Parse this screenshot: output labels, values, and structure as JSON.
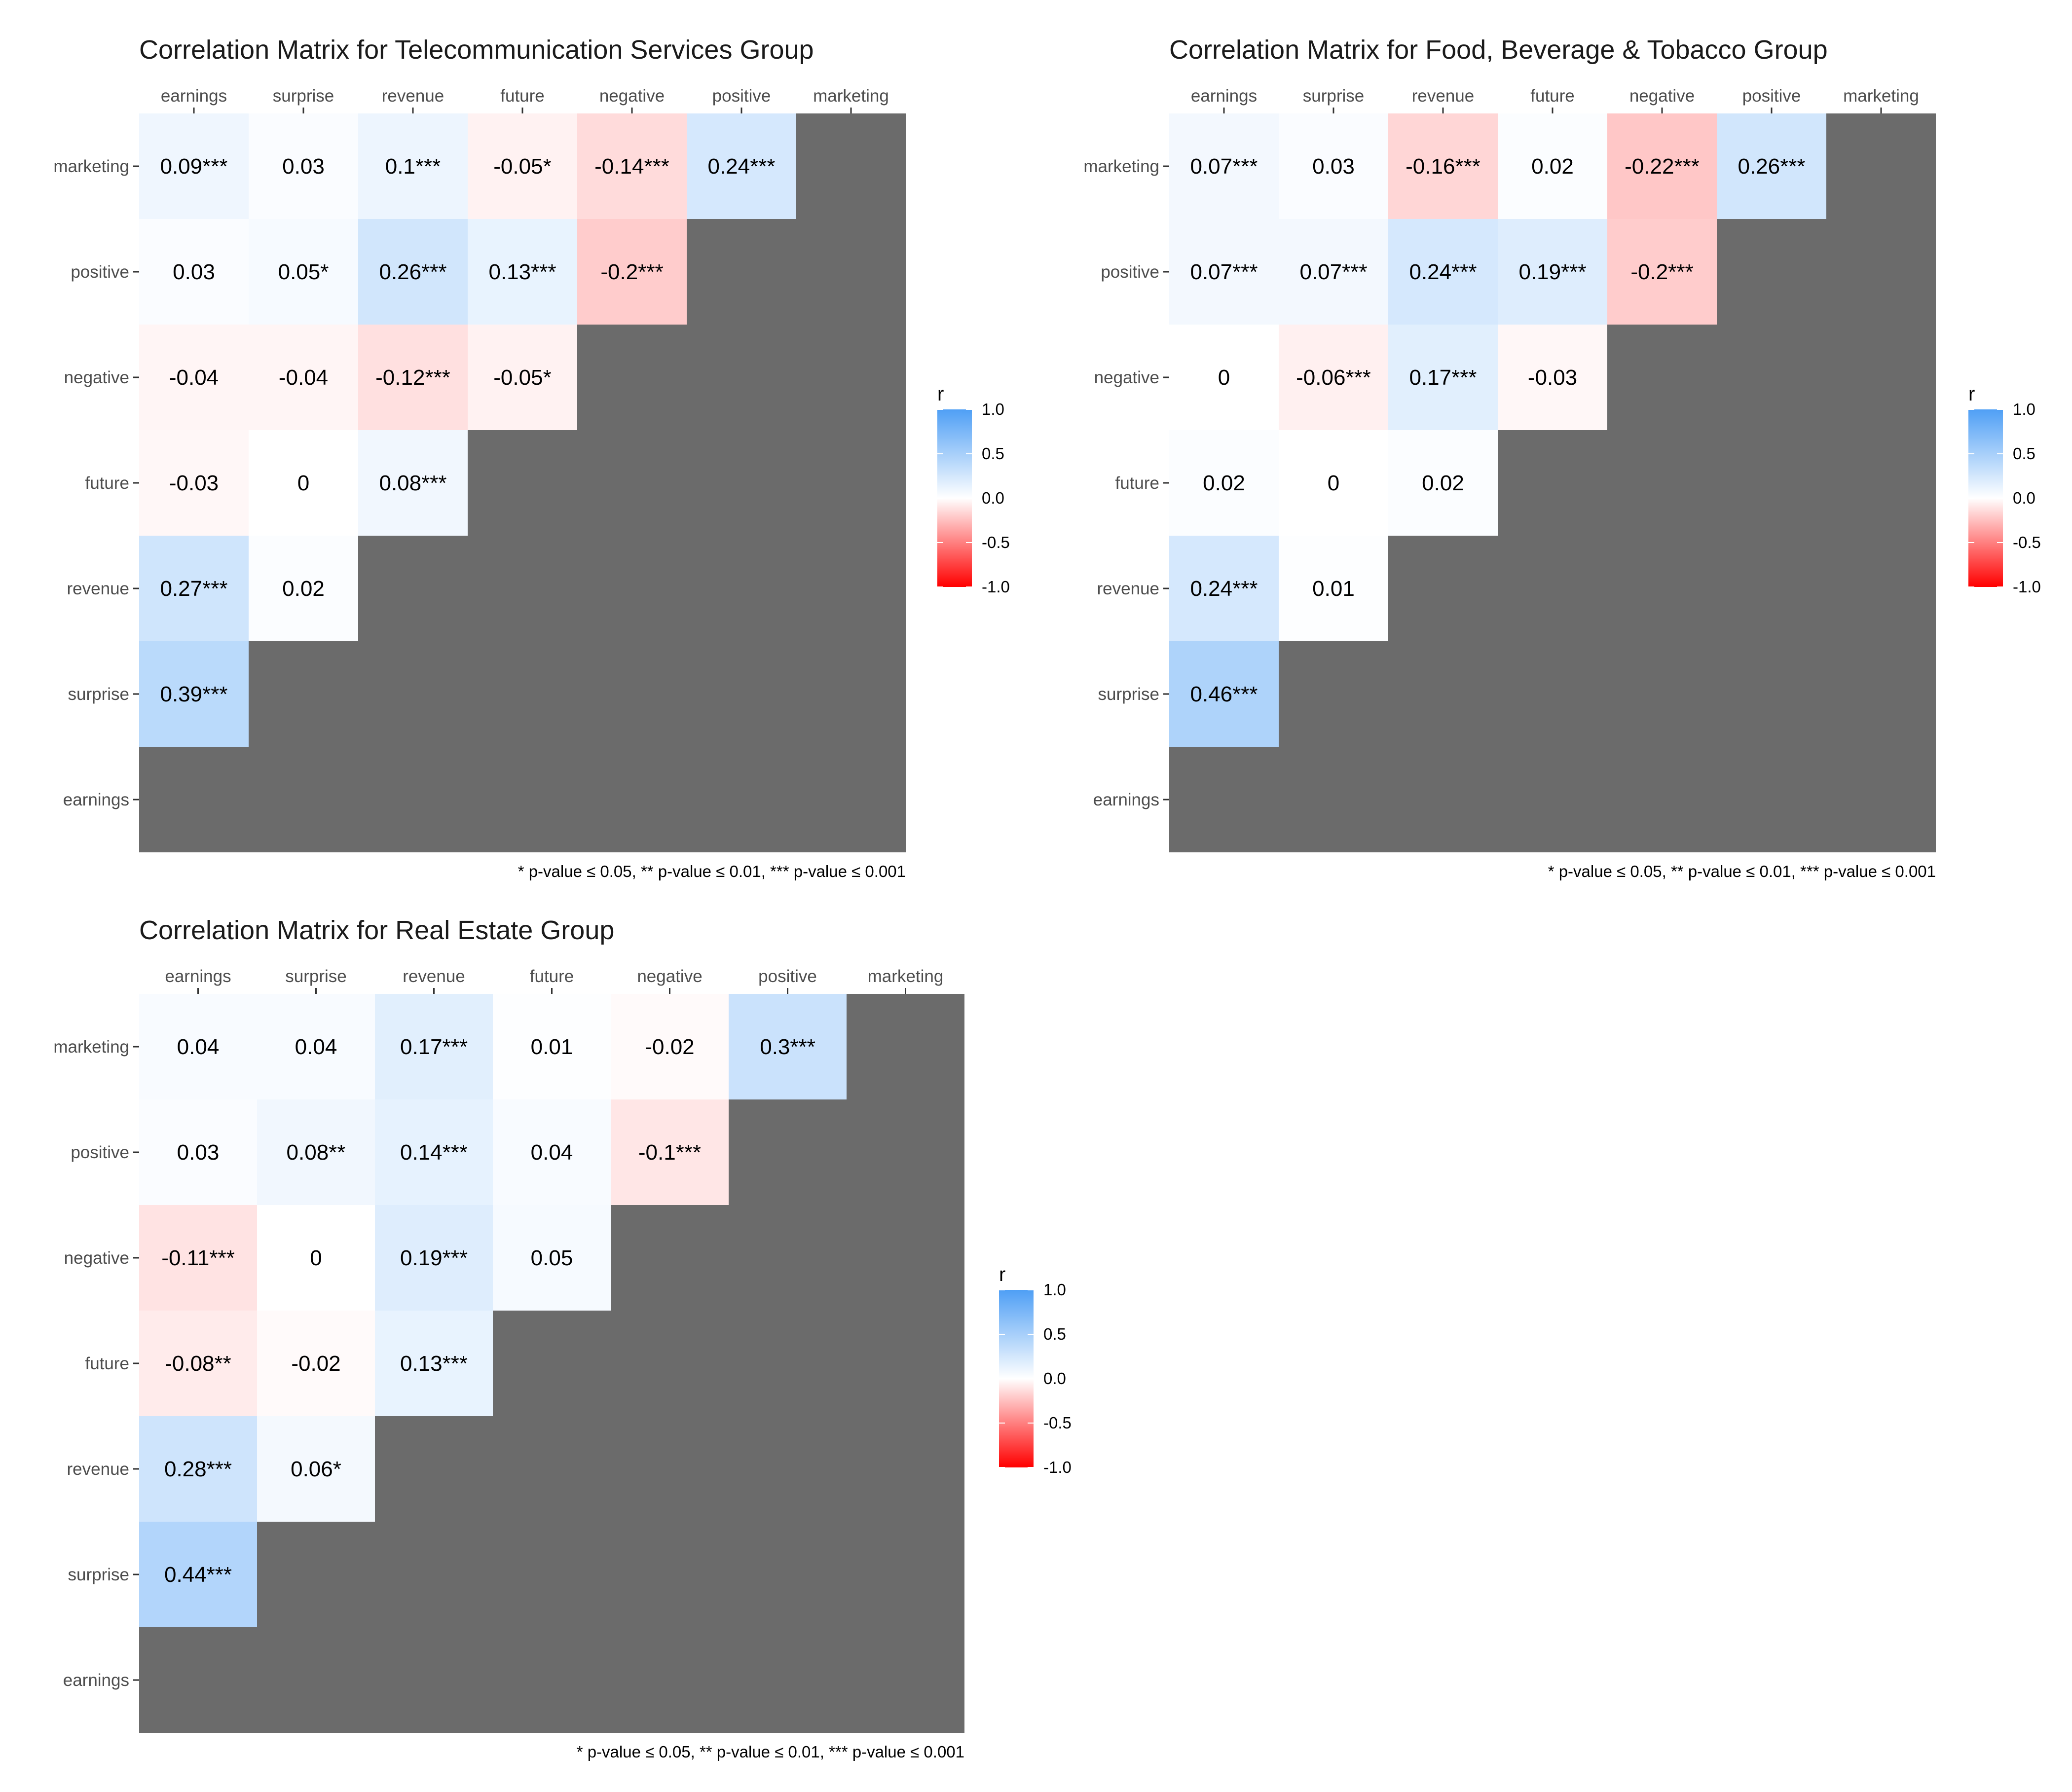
{
  "chart_data": [
    {
      "type": "heatmap",
      "title": "Correlation Matrix for Telecommunication Services Group",
      "x_categories": [
        "earnings",
        "surprise",
        "revenue",
        "future",
        "negative",
        "positive",
        "marketing"
      ],
      "y_categories": [
        "marketing",
        "positive",
        "negative",
        "future",
        "revenue",
        "surprise",
        "earnings"
      ],
      "cells": [
        {
          "row": "marketing",
          "col": "earnings",
          "value": 0.09,
          "label": "0.09***"
        },
        {
          "row": "marketing",
          "col": "surprise",
          "value": 0.03,
          "label": "0.03"
        },
        {
          "row": "marketing",
          "col": "revenue",
          "value": 0.1,
          "label": "0.1***"
        },
        {
          "row": "marketing",
          "col": "future",
          "value": -0.05,
          "label": "-0.05*"
        },
        {
          "row": "marketing",
          "col": "negative",
          "value": -0.14,
          "label": "-0.14***"
        },
        {
          "row": "marketing",
          "col": "positive",
          "value": 0.24,
          "label": "0.24***"
        },
        {
          "row": "positive",
          "col": "earnings",
          "value": 0.03,
          "label": "0.03"
        },
        {
          "row": "positive",
          "col": "surprise",
          "value": 0.05,
          "label": "0.05*"
        },
        {
          "row": "positive",
          "col": "revenue",
          "value": 0.26,
          "label": "0.26***"
        },
        {
          "row": "positive",
          "col": "future",
          "value": 0.13,
          "label": "0.13***"
        },
        {
          "row": "positive",
          "col": "negative",
          "value": -0.2,
          "label": "-0.2***"
        },
        {
          "row": "negative",
          "col": "earnings",
          "value": -0.04,
          "label": "-0.04"
        },
        {
          "row": "negative",
          "col": "surprise",
          "value": -0.04,
          "label": "-0.04"
        },
        {
          "row": "negative",
          "col": "revenue",
          "value": -0.12,
          "label": "-0.12***"
        },
        {
          "row": "negative",
          "col": "future",
          "value": -0.05,
          "label": "-0.05*"
        },
        {
          "row": "future",
          "col": "earnings",
          "value": -0.03,
          "label": "-0.03"
        },
        {
          "row": "future",
          "col": "surprise",
          "value": 0,
          "label": "0"
        },
        {
          "row": "future",
          "col": "revenue",
          "value": 0.08,
          "label": "0.08***"
        },
        {
          "row": "revenue",
          "col": "earnings",
          "value": 0.27,
          "label": "0.27***"
        },
        {
          "row": "revenue",
          "col": "surprise",
          "value": 0.02,
          "label": "0.02"
        },
        {
          "row": "surprise",
          "col": "earnings",
          "value": 0.39,
          "label": "0.39***"
        }
      ],
      "caption": "* p-value ≤ 0.05, ** p-value ≤ 0.01, *** p-value ≤ 0.001",
      "legend": {
        "title": "r",
        "range": [
          -1,
          1
        ],
        "ticks": [
          "1.0",
          "0.5",
          "0.0",
          "-0.5",
          "-1.0"
        ]
      }
    },
    {
      "type": "heatmap",
      "title": "Correlation Matrix for Food, Beverage & Tobacco Group",
      "x_categories": [
        "earnings",
        "surprise",
        "revenue",
        "future",
        "negative",
        "positive",
        "marketing"
      ],
      "y_categories": [
        "marketing",
        "positive",
        "negative",
        "future",
        "revenue",
        "surprise",
        "earnings"
      ],
      "cells": [
        {
          "row": "marketing",
          "col": "earnings",
          "value": 0.07,
          "label": "0.07***"
        },
        {
          "row": "marketing",
          "col": "surprise",
          "value": 0.03,
          "label": "0.03"
        },
        {
          "row": "marketing",
          "col": "revenue",
          "value": -0.16,
          "label": "-0.16***"
        },
        {
          "row": "marketing",
          "col": "future",
          "value": 0.02,
          "label": "0.02"
        },
        {
          "row": "marketing",
          "col": "negative",
          "value": -0.22,
          "label": "-0.22***"
        },
        {
          "row": "marketing",
          "col": "positive",
          "value": 0.26,
          "label": "0.26***"
        },
        {
          "row": "positive",
          "col": "earnings",
          "value": 0.07,
          "label": "0.07***"
        },
        {
          "row": "positive",
          "col": "surprise",
          "value": 0.07,
          "label": "0.07***"
        },
        {
          "row": "positive",
          "col": "revenue",
          "value": 0.24,
          "label": "0.24***"
        },
        {
          "row": "positive",
          "col": "future",
          "value": 0.19,
          "label": "0.19***"
        },
        {
          "row": "positive",
          "col": "negative",
          "value": -0.2,
          "label": "-0.2***"
        },
        {
          "row": "negative",
          "col": "earnings",
          "value": 0,
          "label": "0"
        },
        {
          "row": "negative",
          "col": "surprise",
          "value": -0.06,
          "label": "-0.06***"
        },
        {
          "row": "negative",
          "col": "revenue",
          "value": 0.17,
          "label": "0.17***"
        },
        {
          "row": "negative",
          "col": "future",
          "value": -0.03,
          "label": "-0.03"
        },
        {
          "row": "future",
          "col": "earnings",
          "value": 0.02,
          "label": "0.02"
        },
        {
          "row": "future",
          "col": "surprise",
          "value": 0,
          "label": "0"
        },
        {
          "row": "future",
          "col": "revenue",
          "value": 0.02,
          "label": "0.02"
        },
        {
          "row": "revenue",
          "col": "earnings",
          "value": 0.24,
          "label": "0.24***"
        },
        {
          "row": "revenue",
          "col": "surprise",
          "value": 0.01,
          "label": "0.01"
        },
        {
          "row": "surprise",
          "col": "earnings",
          "value": 0.46,
          "label": "0.46***"
        }
      ],
      "caption": "* p-value ≤ 0.05, ** p-value ≤ 0.01, *** p-value ≤ 0.001",
      "legend": {
        "title": "r",
        "range": [
          -1,
          1
        ],
        "ticks": [
          "1.0",
          "0.5",
          "0.0",
          "-0.5",
          "-1.0"
        ]
      }
    },
    {
      "type": "heatmap",
      "title": "Correlation Matrix for Real Estate Group",
      "x_categories": [
        "earnings",
        "surprise",
        "revenue",
        "future",
        "negative",
        "positive",
        "marketing"
      ],
      "y_categories": [
        "marketing",
        "positive",
        "negative",
        "future",
        "revenue",
        "surprise",
        "earnings"
      ],
      "cells": [
        {
          "row": "marketing",
          "col": "earnings",
          "value": 0.04,
          "label": "0.04"
        },
        {
          "row": "marketing",
          "col": "surprise",
          "value": 0.04,
          "label": "0.04"
        },
        {
          "row": "marketing",
          "col": "revenue",
          "value": 0.17,
          "label": "0.17***"
        },
        {
          "row": "marketing",
          "col": "future",
          "value": 0.01,
          "label": "0.01"
        },
        {
          "row": "marketing",
          "col": "negative",
          "value": -0.02,
          "label": "-0.02"
        },
        {
          "row": "marketing",
          "col": "positive",
          "value": 0.3,
          "label": "0.3***"
        },
        {
          "row": "positive",
          "col": "earnings",
          "value": 0.03,
          "label": "0.03"
        },
        {
          "row": "positive",
          "col": "surprise",
          "value": 0.08,
          "label": "0.08**"
        },
        {
          "row": "positive",
          "col": "revenue",
          "value": 0.14,
          "label": "0.14***"
        },
        {
          "row": "positive",
          "col": "future",
          "value": 0.04,
          "label": "0.04"
        },
        {
          "row": "positive",
          "col": "negative",
          "value": -0.1,
          "label": "-0.1***"
        },
        {
          "row": "negative",
          "col": "earnings",
          "value": -0.11,
          "label": "-0.11***"
        },
        {
          "row": "negative",
          "col": "surprise",
          "value": 0,
          "label": "0"
        },
        {
          "row": "negative",
          "col": "revenue",
          "value": 0.19,
          "label": "0.19***"
        },
        {
          "row": "negative",
          "col": "future",
          "value": 0.05,
          "label": "0.05"
        },
        {
          "row": "future",
          "col": "earnings",
          "value": -0.08,
          "label": "-0.08**"
        },
        {
          "row": "future",
          "col": "surprise",
          "value": -0.02,
          "label": "-0.02"
        },
        {
          "row": "future",
          "col": "revenue",
          "value": 0.13,
          "label": "0.13***"
        },
        {
          "row": "revenue",
          "col": "earnings",
          "value": 0.28,
          "label": "0.28***"
        },
        {
          "row": "revenue",
          "col": "surprise",
          "value": 0.06,
          "label": "0.06*"
        },
        {
          "row": "surprise",
          "col": "earnings",
          "value": 0.44,
          "label": "0.44***"
        }
      ],
      "caption": "* p-value ≤ 0.05, ** p-value ≤ 0.01, *** p-value ≤ 0.001",
      "legend": {
        "title": "r",
        "range": [
          -1,
          1
        ],
        "ticks": [
          "1.0",
          "0.5",
          "0.0",
          "-0.5",
          "-1.0"
        ]
      }
    }
  ],
  "colors": {
    "positive_end": "#4f9ff5",
    "neutral": "#ffffff",
    "negative_end": "#ff0000",
    "empty_cell": "#6b6b6b"
  }
}
